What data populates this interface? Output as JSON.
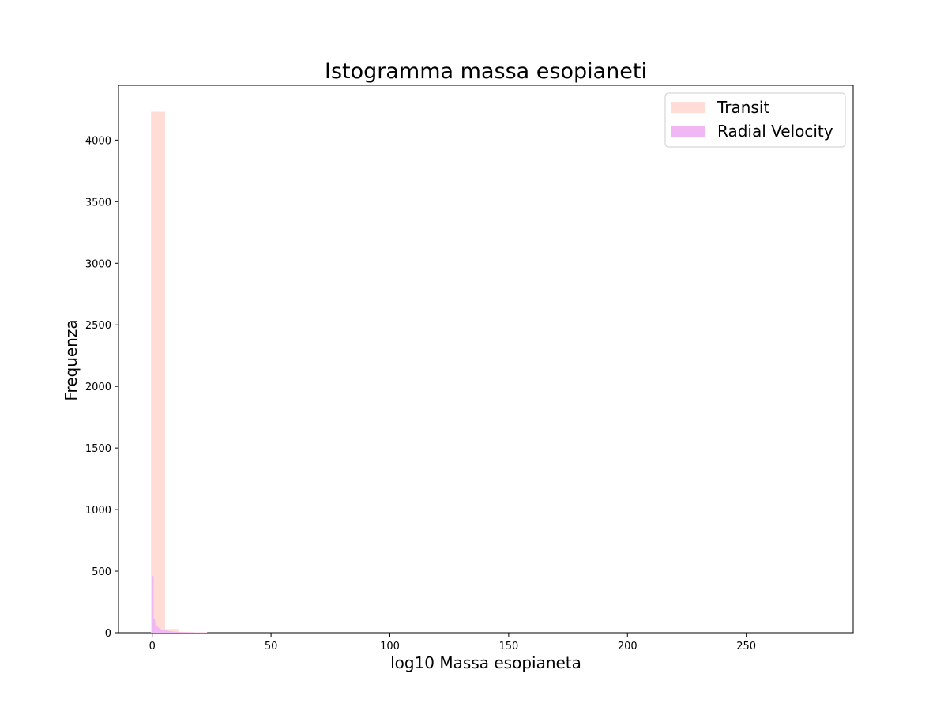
{
  "chart_data": {
    "type": "bar",
    "title": "Istogramma massa esopianeti",
    "xlabel": "log10 Massa esopianeta",
    "ylabel": "Frequenza",
    "xlim": [
      -14.2,
      295
    ],
    "ylim": [
      0,
      4445
    ],
    "xticks": [
      0,
      50,
      100,
      150,
      200,
      250
    ],
    "yticks": [
      0,
      500,
      1000,
      1500,
      2000,
      2500,
      3000,
      3500,
      4000
    ],
    "grid": false,
    "legend_position": "upper-right",
    "series": [
      {
        "name": "Transit",
        "color": "#ffdcd6",
        "bins": [
          {
            "x0": -0.5,
            "x1": 5.4,
            "count": 4230
          },
          {
            "x0": 5.4,
            "x1": 11.3,
            "count": 30
          },
          {
            "x0": 11.3,
            "x1": 17.2,
            "count": 6
          },
          {
            "x0": 17.2,
            "x1": 23.1,
            "count": 3
          }
        ]
      },
      {
        "name": "Radial Velocity",
        "color": "#f1b6f4",
        "bins": [
          {
            "x0": 0.0,
            "x1": 0.6,
            "count": 460
          },
          {
            "x0": 0.6,
            "x1": 1.2,
            "count": 110
          },
          {
            "x0": 1.2,
            "x1": 1.8,
            "count": 80
          },
          {
            "x0": 1.8,
            "x1": 2.4,
            "count": 55
          },
          {
            "x0": 2.4,
            "x1": 3.0,
            "count": 40
          },
          {
            "x0": 3.0,
            "x1": 3.6,
            "count": 30
          },
          {
            "x0": 3.6,
            "x1": 4.2,
            "count": 25
          },
          {
            "x0": 4.2,
            "x1": 4.8,
            "count": 20
          },
          {
            "x0": 4.8,
            "x1": 5.4,
            "count": 20
          },
          {
            "x0": 5.4,
            "x1": 6.0,
            "count": 18
          },
          {
            "x0": 6.0,
            "x1": 6.6,
            "count": 16
          },
          {
            "x0": 6.6,
            "x1": 7.2,
            "count": 14
          },
          {
            "x0": 7.2,
            "x1": 7.8,
            "count": 12
          },
          {
            "x0": 7.8,
            "x1": 8.4,
            "count": 11
          },
          {
            "x0": 8.4,
            "x1": 9.0,
            "count": 10
          },
          {
            "x0": 9.0,
            "x1": 9.6,
            "count": 9
          },
          {
            "x0": 9.6,
            "x1": 10.2,
            "count": 8
          },
          {
            "x0": 10.2,
            "x1": 10.8,
            "count": 7
          },
          {
            "x0": 10.8,
            "x1": 11.4,
            "count": 6
          },
          {
            "x0": 11.4,
            "x1": 12.0,
            "count": 6
          },
          {
            "x0": 12.0,
            "x1": 13.5,
            "count": 5
          },
          {
            "x0": 13.5,
            "x1": 15.0,
            "count": 4
          },
          {
            "x0": 15.0,
            "x1": 17.0,
            "count": 3
          },
          {
            "x0": 17.0,
            "x1": 20.0,
            "count": 2
          },
          {
            "x0": 20.0,
            "x1": 23.0,
            "count": 1
          }
        ]
      }
    ]
  }
}
